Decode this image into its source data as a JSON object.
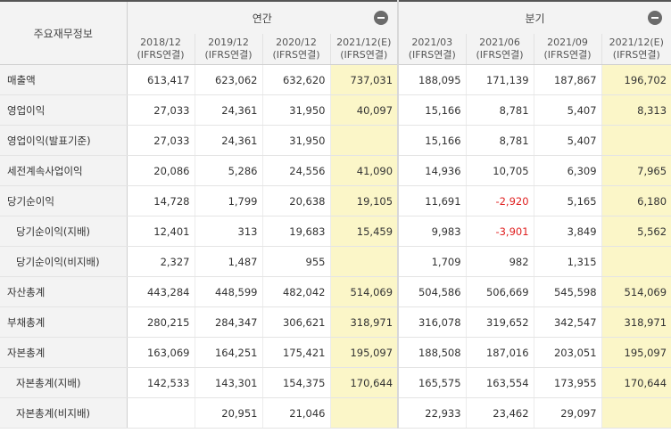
{
  "table": {
    "corner_label": "주요재무정보",
    "groups": {
      "annual": "연간",
      "quarterly": "분기"
    },
    "periods": [
      {
        "date": "2018/12",
        "basis": "(IFRS연결)"
      },
      {
        "date": "2019/12",
        "basis": "(IFRS연결)"
      },
      {
        "date": "2020/12",
        "basis": "(IFRS연결)"
      },
      {
        "date": "2021/12(E)",
        "basis": "(IFRS연결)"
      },
      {
        "date": "2021/03",
        "basis": "(IFRS연결)"
      },
      {
        "date": "2021/06",
        "basis": "(IFRS연결)"
      },
      {
        "date": "2021/09",
        "basis": "(IFRS연결)"
      },
      {
        "date": "2021/12(E)",
        "basis": "(IFRS연결)"
      }
    ],
    "rows": [
      {
        "label": "매출액",
        "values": [
          "613,417",
          "623,062",
          "632,620",
          "737,031",
          "188,095",
          "171,139",
          "187,867",
          "196,702"
        ]
      },
      {
        "label": "영업이익",
        "values": [
          "27,033",
          "24,361",
          "31,950",
          "40,097",
          "15,166",
          "8,781",
          "5,407",
          "8,313"
        ]
      },
      {
        "label": "영업이익(발표기준)",
        "values": [
          "27,033",
          "24,361",
          "31,950",
          "",
          "15,166",
          "8,781",
          "5,407",
          ""
        ]
      },
      {
        "label": "세전계속사업이익",
        "values": [
          "20,086",
          "5,286",
          "24,556",
          "41,090",
          "14,936",
          "10,705",
          "6,309",
          "7,965"
        ]
      },
      {
        "label": "당기순이익",
        "values": [
          "14,728",
          "1,799",
          "20,638",
          "19,105",
          "11,691",
          "-2,920",
          "5,165",
          "6,180"
        ]
      },
      {
        "label": "당기순이익(지배)",
        "values": [
          "12,401",
          "313",
          "19,683",
          "15,459",
          "9,983",
          "-3,901",
          "3,849",
          "5,562"
        ]
      },
      {
        "label": "당기순이익(비지배)",
        "values": [
          "2,327",
          "1,487",
          "955",
          "",
          "1,709",
          "982",
          "1,315",
          ""
        ]
      },
      {
        "label": "자산총계",
        "values": [
          "443,284",
          "448,599",
          "482,042",
          "514,069",
          "504,586",
          "506,669",
          "545,598",
          "514,069"
        ]
      },
      {
        "label": "부채총계",
        "values": [
          "280,215",
          "284,347",
          "306,621",
          "318,971",
          "316,078",
          "319,652",
          "342,547",
          "318,971"
        ]
      },
      {
        "label": "자본총계",
        "values": [
          "163,069",
          "164,251",
          "175,421",
          "195,097",
          "188,508",
          "187,016",
          "203,051",
          "195,097"
        ]
      },
      {
        "label": "자본총계(지배)",
        "values": [
          "142,533",
          "143,301",
          "154,375",
          "170,644",
          "165,575",
          "163,554",
          "173,955",
          "170,644"
        ]
      },
      {
        "label": "자본총계(비지배)",
        "values": [
          "",
          "20,951",
          "21,046",
          "",
          "22,933",
          "23,462",
          "29,097",
          ""
        ]
      }
    ]
  },
  "colors": {
    "estimate_bg": "#fbf6c8",
    "negative": "#e02020",
    "header_bg": "#f3f3f3"
  },
  "icons": {
    "collapse": "minus-circle-icon"
  }
}
